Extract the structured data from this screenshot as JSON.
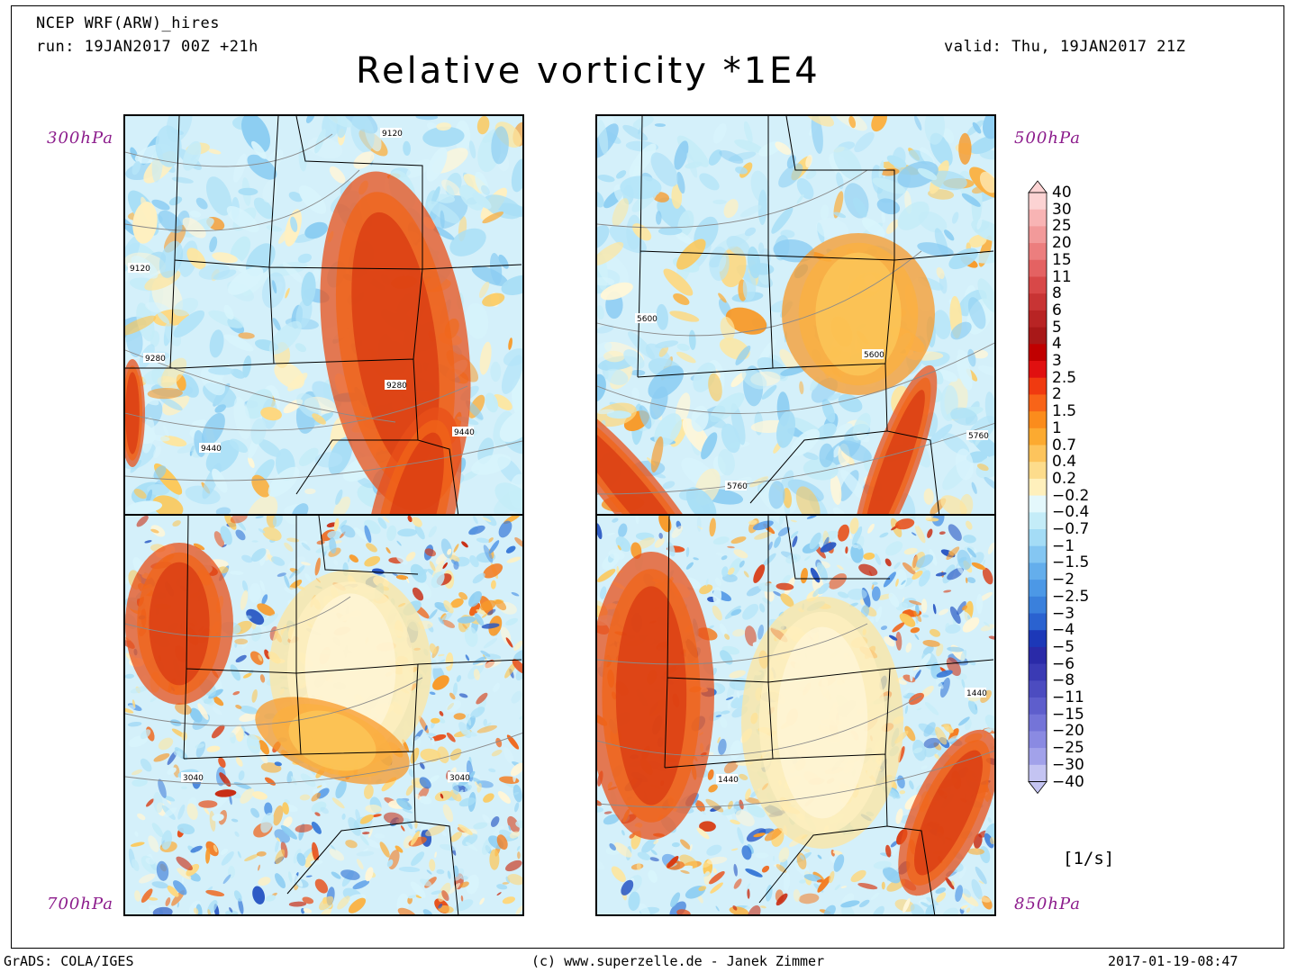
{
  "header": {
    "model": "NCEP WRF(ARW)_hires",
    "run": "run: 19JAN2017 00Z +21h",
    "valid": "valid: Thu, 19JAN2017 21Z",
    "title": "Relative vorticity *1E4"
  },
  "panels": [
    {
      "level": "300hPa",
      "contours": [
        "9120",
        "9120",
        "9280",
        "9280",
        "9440",
        "9440"
      ],
      "seed": 3
    },
    {
      "level": "500hPa",
      "contours": [
        "5600",
        "5600",
        "5760",
        "5760"
      ],
      "seed": 11
    },
    {
      "level": "700hPa",
      "contours": [
        "3040",
        "3040"
      ],
      "seed": 23
    },
    {
      "level": "850hPa",
      "contours": [
        "1440",
        "1440"
      ],
      "seed": 37
    }
  ],
  "colorbar": {
    "unit": "[1/s]",
    "labels": [
      "40",
      "30",
      "25",
      "20",
      "15",
      "11",
      "8",
      "6",
      "5",
      "4",
      "3",
      "2.5",
      "2",
      "1.5",
      "1",
      "0.7",
      "0.4",
      "0.2",
      "−0.2",
      "−0.4",
      "−0.7",
      "−1",
      "−1.5",
      "−2",
      "−2.5",
      "−3",
      "−4",
      "−5",
      "−6",
      "−8",
      "−11",
      "−15",
      "−20",
      "−25",
      "−30",
      "−40"
    ],
    "colors": [
      "#fcd3d3",
      "#f8b4b4",
      "#f29a9a",
      "#ec7e7e",
      "#e46262",
      "#d84848",
      "#c83434",
      "#b82424",
      "#a81818",
      "#c00000",
      "#e01010",
      "#f03a10",
      "#f86418",
      "#fb8c1c",
      "#fcaa30",
      "#fdc45c",
      "#fddc8c",
      "#fff0bc",
      "#ffffff",
      "#e4f8fc",
      "#c4ecf8",
      "#a4dcf6",
      "#84c6f2",
      "#64aeec",
      "#4c98e6",
      "#3a80dc",
      "#2a62d0",
      "#1c38b8",
      "#2a2aa8",
      "#3a3ab4",
      "#4c4cc0",
      "#5e5ecc",
      "#7474d8",
      "#8a8ae2",
      "#a2a2ea",
      "#c4c4f2"
    ]
  },
  "footer": {
    "left": "GrADS: COLA/IGES",
    "center": "(c) www.superzelle.de - Janek Zimmer",
    "right": "2017-01-19-08:47"
  }
}
